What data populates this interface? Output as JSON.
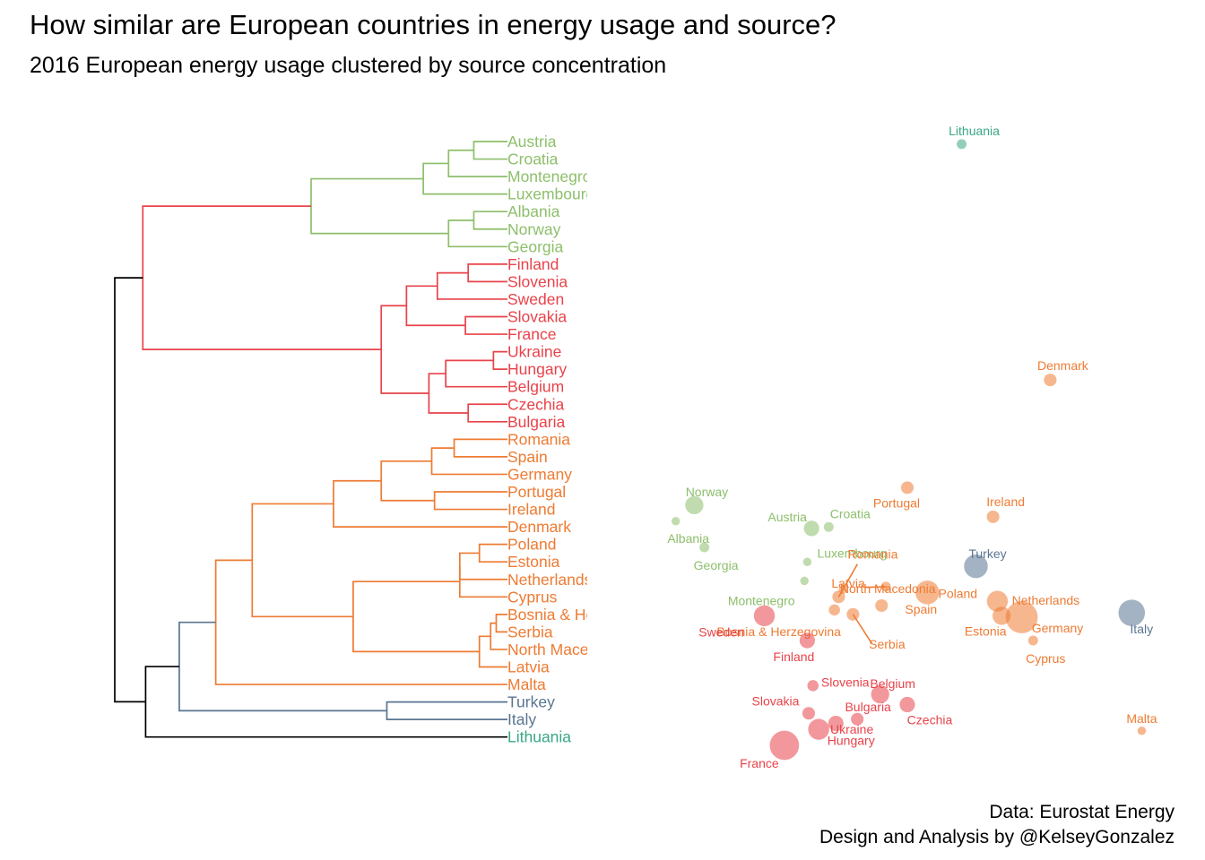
{
  "title": "How similar are European countries in energy usage and source?",
  "subtitle": "2016 European energy usage clustered by source concentration",
  "credits": {
    "line1": "Data: Eurostat Energy",
    "line2": "Design and Analysis by @KelseyGonzalez"
  },
  "colors": {
    "green": "#8dbf6b",
    "red": "#e8434a",
    "orange": "#ee7b33",
    "slate": "#5a7591",
    "teal": "#3aa686",
    "root": "#000000"
  },
  "chart_data": [
    {
      "type": "dendrogram",
      "leaves": [
        {
          "label": "Austria",
          "cluster": "green"
        },
        {
          "label": "Croatia",
          "cluster": "green"
        },
        {
          "label": "Montenegro",
          "cluster": "green"
        },
        {
          "label": "Luxembourg",
          "cluster": "green"
        },
        {
          "label": "Albania",
          "cluster": "green"
        },
        {
          "label": "Norway",
          "cluster": "green"
        },
        {
          "label": "Georgia",
          "cluster": "green"
        },
        {
          "label": "Finland",
          "cluster": "red"
        },
        {
          "label": "Slovenia",
          "cluster": "red"
        },
        {
          "label": "Sweden",
          "cluster": "red"
        },
        {
          "label": "Slovakia",
          "cluster": "red"
        },
        {
          "label": "France",
          "cluster": "red"
        },
        {
          "label": "Ukraine",
          "cluster": "red"
        },
        {
          "label": "Hungary",
          "cluster": "red"
        },
        {
          "label": "Belgium",
          "cluster": "red"
        },
        {
          "label": "Czechia",
          "cluster": "red"
        },
        {
          "label": "Bulgaria",
          "cluster": "red"
        },
        {
          "label": "Romania",
          "cluster": "orange"
        },
        {
          "label": "Spain",
          "cluster": "orange"
        },
        {
          "label": "Germany",
          "cluster": "orange"
        },
        {
          "label": "Portugal",
          "cluster": "orange"
        },
        {
          "label": "Ireland",
          "cluster": "orange"
        },
        {
          "label": "Denmark",
          "cluster": "orange"
        },
        {
          "label": "Poland",
          "cluster": "orange"
        },
        {
          "label": "Estonia",
          "cluster": "orange"
        },
        {
          "label": "Netherlands",
          "cluster": "orange"
        },
        {
          "label": "Cyprus",
          "cluster": "orange"
        },
        {
          "label": "Bosnia & Herzegovina",
          "cluster": "orange"
        },
        {
          "label": "Serbia",
          "cluster": "orange"
        },
        {
          "label": "North Macedonia",
          "cluster": "orange"
        },
        {
          "label": "Latvia",
          "cluster": "orange"
        },
        {
          "label": "Malta",
          "cluster": "orange"
        },
        {
          "label": "Turkey",
          "cluster": "slate"
        },
        {
          "label": "Italy",
          "cluster": "slate"
        },
        {
          "label": "Lithuania",
          "cluster": "teal"
        }
      ],
      "merges": [
        {
          "a": "Austria",
          "b": "Croatia",
          "height": 0.12,
          "cluster": "green"
        },
        {
          "a": "Albania",
          "b": "Norway",
          "height": 0.12,
          "cluster": "green"
        },
        {
          "a": "m0",
          "b": "Montenegro",
          "height": 0.21,
          "cluster": "green"
        },
        {
          "a": "m1",
          "b": "Georgia",
          "height": 0.21,
          "cluster": "green"
        },
        {
          "a": "m2",
          "b": "Luxembourg",
          "height": 0.3,
          "cluster": "green"
        },
        {
          "a": "m4",
          "b": "m3",
          "height": 0.7,
          "cluster": "green"
        },
        {
          "a": "Slovakia",
          "b": "France",
          "height": 0.15,
          "cluster": "red"
        },
        {
          "a": "Ukraine",
          "b": "Hungary",
          "height": 0.05,
          "cluster": "red"
        },
        {
          "a": "Czechia",
          "b": "Bulgaria",
          "height": 0.14,
          "cluster": "red"
        },
        {
          "a": "Finland",
          "b": "Slovenia",
          "height": 0.14,
          "cluster": "red"
        },
        {
          "a": "m9",
          "b": "Sweden",
          "height": 0.25,
          "cluster": "red"
        },
        {
          "a": "m10",
          "b": "m6",
          "height": 0.36,
          "cluster": "red"
        },
        {
          "a": "m7",
          "b": "Belgium",
          "height": 0.22,
          "cluster": "red"
        },
        {
          "a": "m12",
          "b": "m8",
          "height": 0.28,
          "cluster": "red"
        },
        {
          "a": "m11",
          "b": "m13",
          "height": 0.45,
          "cluster": "red"
        },
        {
          "a": "Romania",
          "b": "Spain",
          "height": 0.19,
          "cluster": "orange"
        },
        {
          "a": "m15",
          "b": "Germany",
          "height": 0.27,
          "cluster": "orange"
        },
        {
          "a": "Portugal",
          "b": "Ireland",
          "height": 0.26,
          "cluster": "orange"
        },
        {
          "a": "m16",
          "b": "m17",
          "height": 0.45,
          "cluster": "orange"
        },
        {
          "a": "m18",
          "b": "Denmark",
          "height": 0.62,
          "cluster": "orange"
        },
        {
          "a": "Poland",
          "b": "Estonia",
          "height": 0.1,
          "cluster": "orange"
        },
        {
          "a": "m20",
          "b": "Netherlands",
          "height": 0.17,
          "cluster": "orange"
        },
        {
          "a": "m21",
          "b": "Cyprus",
          "height": 0.17,
          "cluster": "orange"
        },
        {
          "a": "Bosnia & Herzegovina",
          "b": "Serbia",
          "height": 0.04,
          "cluster": "orange"
        },
        {
          "a": "m23",
          "b": "North Macedonia",
          "height": 0.06,
          "cluster": "orange"
        },
        {
          "a": "m24",
          "b": "Latvia",
          "height": 0.1,
          "cluster": "orange"
        },
        {
          "a": "m22",
          "b": "m25",
          "height": 0.55,
          "cluster": "orange"
        },
        {
          "a": "m19",
          "b": "m26",
          "height": 0.91,
          "cluster": "orange"
        },
        {
          "a": "m27",
          "b": "Malta",
          "height": 1.04,
          "cluster": "orange"
        },
        {
          "a": "Turkey",
          "b": "Italy",
          "height": 0.43,
          "cluster": "slate"
        },
        {
          "a": "m28",
          "b": "m29",
          "height": 1.17,
          "cluster": "slate"
        },
        {
          "a": "m30",
          "b": "Lithuania",
          "height": 1.29,
          "cluster": "root"
        },
        {
          "a": "m5",
          "b": "m14",
          "height": 1.3,
          "cluster": "red"
        },
        {
          "a": "m31",
          "b": "m32",
          "height": 1.4,
          "cluster": "root"
        }
      ]
    },
    {
      "type": "scatter",
      "xlim": [
        -1.5,
        2
      ],
      "ylim": [
        -2,
        2
      ],
      "points": [
        {
          "label": "Lithuania",
          "x": 0.68,
          "y": 1.97,
          "size": 2,
          "cluster": "teal"
        },
        {
          "label": "Denmark",
          "x": 1.3,
          "y": 0.35,
          "size": 3,
          "cluster": "orange"
        },
        {
          "label": "Portugal",
          "x": 0.3,
          "y": -0.39,
          "size": 3,
          "cluster": "orange"
        },
        {
          "label": "Ireland",
          "x": 0.9,
          "y": -0.59,
          "size": 3,
          "cluster": "orange"
        },
        {
          "label": "Turkey",
          "x": 0.78,
          "y": -0.93,
          "size": 7,
          "cluster": "slate"
        },
        {
          "label": "Italy",
          "x": 1.87,
          "y": -1.25,
          "size": 8,
          "cluster": "slate"
        },
        {
          "label": "Norway",
          "x": -1.19,
          "y": -0.51,
          "size": 5,
          "cluster": "green"
        },
        {
          "label": "Albania",
          "x": -1.32,
          "y": -0.62,
          "size": 1.5,
          "cluster": "green"
        },
        {
          "label": "Austria",
          "x": -0.37,
          "y": -0.67,
          "size": 4,
          "cluster": "green"
        },
        {
          "label": "Croatia",
          "x": -0.25,
          "y": -0.66,
          "size": 2,
          "cluster": "green"
        },
        {
          "label": "Georgia",
          "x": -1.12,
          "y": -0.8,
          "size": 2,
          "cluster": "green"
        },
        {
          "label": "Luxembourg",
          "x": -0.4,
          "y": -0.9,
          "size": 1.5,
          "cluster": "green"
        },
        {
          "label": "Montenegro",
          "x": -0.42,
          "y": -1.03,
          "size": 1.5,
          "cluster": "green"
        },
        {
          "label": "Latvia",
          "x": 0.15,
          "y": -1.07,
          "size": 2,
          "cluster": "orange"
        },
        {
          "label": "North Macedonia",
          "x": -0.15,
          "y": -1.09,
          "size": 1.5,
          "cluster": "orange"
        },
        {
          "label": "Romania",
          "x": -0.18,
          "y": -1.14,
          "size": 3,
          "cluster": "orange"
        },
        {
          "label": "Bosnia & Herzegovina",
          "x": -0.21,
          "y": -1.23,
          "size": 2.5,
          "cluster": "orange"
        },
        {
          "label": "Serbia",
          "x": -0.08,
          "y": -1.26,
          "size": 3,
          "cluster": "orange"
        },
        {
          "label": "Poland",
          "x": 0.44,
          "y": -1.11,
          "size": 7,
          "cluster": "orange"
        },
        {
          "label": "Spain",
          "x": 0.12,
          "y": -1.2,
          "size": 3,
          "cluster": "orange"
        },
        {
          "label": "Netherlands",
          "x": 0.93,
          "y": -1.17,
          "size": 6,
          "cluster": "orange"
        },
        {
          "label": "Estonia",
          "x": 0.96,
          "y": -1.27,
          "size": 5,
          "cluster": "orange"
        },
        {
          "label": "Germany",
          "x": 1.1,
          "y": -1.28,
          "size": 10,
          "cluster": "orange"
        },
        {
          "label": "Cyprus",
          "x": 1.18,
          "y": -1.44,
          "size": 2,
          "cluster": "orange"
        },
        {
          "label": "Malta",
          "x": 1.94,
          "y": -2.06,
          "size": 1.5,
          "cluster": "orange"
        },
        {
          "label": "Sweden",
          "x": -0.7,
          "y": -1.27,
          "size": 6,
          "cluster": "red"
        },
        {
          "label": "Finland",
          "x": -0.4,
          "y": -1.44,
          "size": 4,
          "cluster": "red"
        },
        {
          "label": "Slovenia",
          "x": -0.36,
          "y": -1.75,
          "size": 2.5,
          "cluster": "red"
        },
        {
          "label": "Belgium",
          "x": 0.11,
          "y": -1.81,
          "size": 5,
          "cluster": "red"
        },
        {
          "label": "Slovakia",
          "x": -0.39,
          "y": -1.94,
          "size": 3,
          "cluster": "red"
        },
        {
          "label": "Czechia",
          "x": 0.3,
          "y": -1.88,
          "size": 4,
          "cluster": "red"
        },
        {
          "label": "Bulgaria",
          "x": -0.05,
          "y": -1.98,
          "size": 3,
          "cluster": "red"
        },
        {
          "label": "Hungary",
          "x": -0.2,
          "y": -2.01,
          "size": 4,
          "cluster": "red"
        },
        {
          "label": "Ukraine",
          "x": -0.32,
          "y": -2.05,
          "size": 6,
          "cluster": "red"
        },
        {
          "label": "France",
          "x": -0.56,
          "y": -2.16,
          "size": 9,
          "cluster": "red"
        }
      ]
    }
  ]
}
